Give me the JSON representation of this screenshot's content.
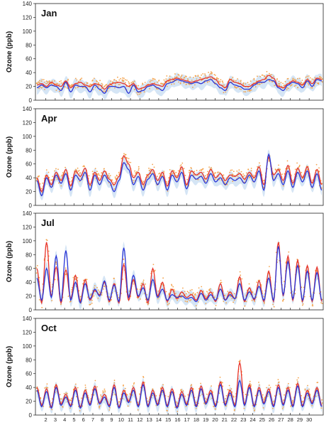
{
  "chart_data": {
    "type": "line",
    "ylabel": "Ozone (ppb)",
    "ylim": [
      0,
      140
    ],
    "yticks": [
      0,
      20,
      40,
      60,
      80,
      100,
      120,
      140
    ],
    "x_tick_labels": [
      "2",
      "3",
      "4",
      "5",
      "6",
      "7",
      "8",
      "9",
      "10",
      "11",
      "12",
      "13",
      "14",
      "15",
      "16",
      "17",
      "18",
      "19",
      "20",
      "21",
      "22",
      "23",
      "24",
      "25",
      "26",
      "27",
      "28",
      "29",
      "30"
    ],
    "colors": {
      "observed_points": "#f4a24a",
      "red_series": "#e8332a",
      "blue_series": "#2b35d6",
      "band": "#c7dcf2"
    },
    "panels": [
      {
        "title": "Jan",
        "red_daily": [
          22,
          24,
          20,
          26,
          22,
          20,
          28,
          18,
          24,
          26,
          22,
          20,
          24,
          22,
          16,
          22,
          25,
          26,
          24,
          20,
          24,
          16,
          18,
          22,
          24,
          22,
          20,
          28,
          30,
          32,
          30,
          28,
          26,
          28,
          30,
          32,
          34,
          30,
          22,
          18,
          30,
          26,
          24,
          20,
          20,
          24,
          28,
          30,
          36,
          32,
          20,
          18,
          24,
          28,
          26,
          22,
          30,
          24,
          32,
          30
        ],
        "blue_daily": [
          18,
          22,
          18,
          22,
          20,
          14,
          26,
          12,
          22,
          20,
          20,
          12,
          22,
          16,
          10,
          20,
          20,
          18,
          20,
          10,
          22,
          12,
          14,
          20,
          22,
          18,
          14,
          24,
          26,
          30,
          28,
          26,
          24,
          26,
          24,
          28,
          30,
          24,
          18,
          14,
          26,
          22,
          20,
          16,
          16,
          22,
          26,
          26,
          30,
          28,
          18,
          14,
          22,
          26,
          24,
          18,
          28,
          20,
          30,
          28
        ]
      },
      {
        "title": "Apr",
        "red_daily": [
          40,
          20,
          44,
          30,
          48,
          36,
          52,
          28,
          50,
          42,
          54,
          30,
          48,
          36,
          50,
          38,
          30,
          42,
          72,
          60,
          40,
          48,
          30,
          44,
          52,
          36,
          48,
          28,
          50,
          40,
          56,
          30,
          50,
          44,
          48,
          38,
          52,
          40,
          46,
          36,
          44,
          42,
          46,
          38,
          48,
          40,
          56,
          30,
          70,
          44,
          52,
          36,
          58,
          32,
          54,
          40,
          56,
          32,
          52,
          30
        ],
        "blue_daily": [
          36,
          14,
          40,
          26,
          44,
          32,
          46,
          22,
          44,
          36,
          48,
          22,
          44,
          30,
          44,
          34,
          20,
          36,
          62,
          52,
          30,
          42,
          22,
          38,
          46,
          30,
          42,
          22,
          44,
          34,
          48,
          24,
          44,
          38,
          42,
          32,
          46,
          34,
          40,
          30,
          40,
          36,
          40,
          32,
          44,
          34,
          50,
          22,
          74,
          36,
          46,
          30,
          50,
          26,
          48,
          34,
          50,
          26,
          46,
          22
        ]
      },
      {
        "title": "Jul",
        "red_daily": [
          60,
          10,
          98,
          20,
          62,
          10,
          58,
          16,
          50,
          12,
          44,
          14,
          28,
          22,
          40,
          12,
          38,
          10,
          66,
          14,
          44,
          18,
          38,
          10,
          60,
          20,
          40,
          12,
          30,
          16,
          26,
          18,
          22,
          14,
          28,
          16,
          26,
          12,
          38,
          14,
          26,
          16,
          48,
          12,
          32,
          14,
          42,
          12,
          56,
          12,
          98,
          20,
          78,
          14,
          72,
          12,
          64,
          12,
          62,
          12
        ],
        "blue_daily": [
          46,
          14,
          60,
          18,
          78,
          12,
          86,
          14,
          40,
          10,
          38,
          16,
          30,
          20,
          42,
          14,
          36,
          12,
          90,
          18,
          50,
          20,
          32,
          14,
          44,
          18,
          30,
          14,
          22,
          18,
          20,
          16,
          18,
          12,
          24,
          14,
          22,
          14,
          30,
          14,
          22,
          16,
          38,
          14,
          26,
          16,
          34,
          14,
          46,
          14,
          92,
          22,
          70,
          16,
          64,
          14,
          56,
          14,
          54,
          14
        ]
      },
      {
        "title": "Oct",
        "red_daily": [
          40,
          14,
          38,
          12,
          44,
          16,
          30,
          14,
          40,
          12,
          36,
          16,
          42,
          18,
          30,
          14,
          44,
          12,
          36,
          20,
          40,
          14,
          48,
          14,
          36,
          16,
          40,
          14,
          38,
          12,
          34,
          16,
          40,
          14,
          42,
          18,
          36,
          14,
          48,
          16,
          36,
          14,
          76,
          16,
          44,
          14,
          40,
          18,
          38,
          14,
          44,
          16,
          40,
          14,
          46,
          14,
          36,
          18,
          40,
          14
        ],
        "blue_daily": [
          36,
          12,
          34,
          10,
          40,
          14,
          26,
          12,
          36,
          10,
          32,
          14,
          38,
          16,
          26,
          12,
          40,
          10,
          32,
          18,
          36,
          12,
          44,
          12,
          32,
          14,
          36,
          12,
          34,
          10,
          30,
          14,
          36,
          12,
          38,
          16,
          32,
          12,
          44,
          14,
          32,
          12,
          50,
          14,
          40,
          12,
          36,
          16,
          34,
          12,
          40,
          14,
          36,
          12,
          42,
          12,
          32,
          16,
          36,
          12
        ]
      }
    ]
  }
}
